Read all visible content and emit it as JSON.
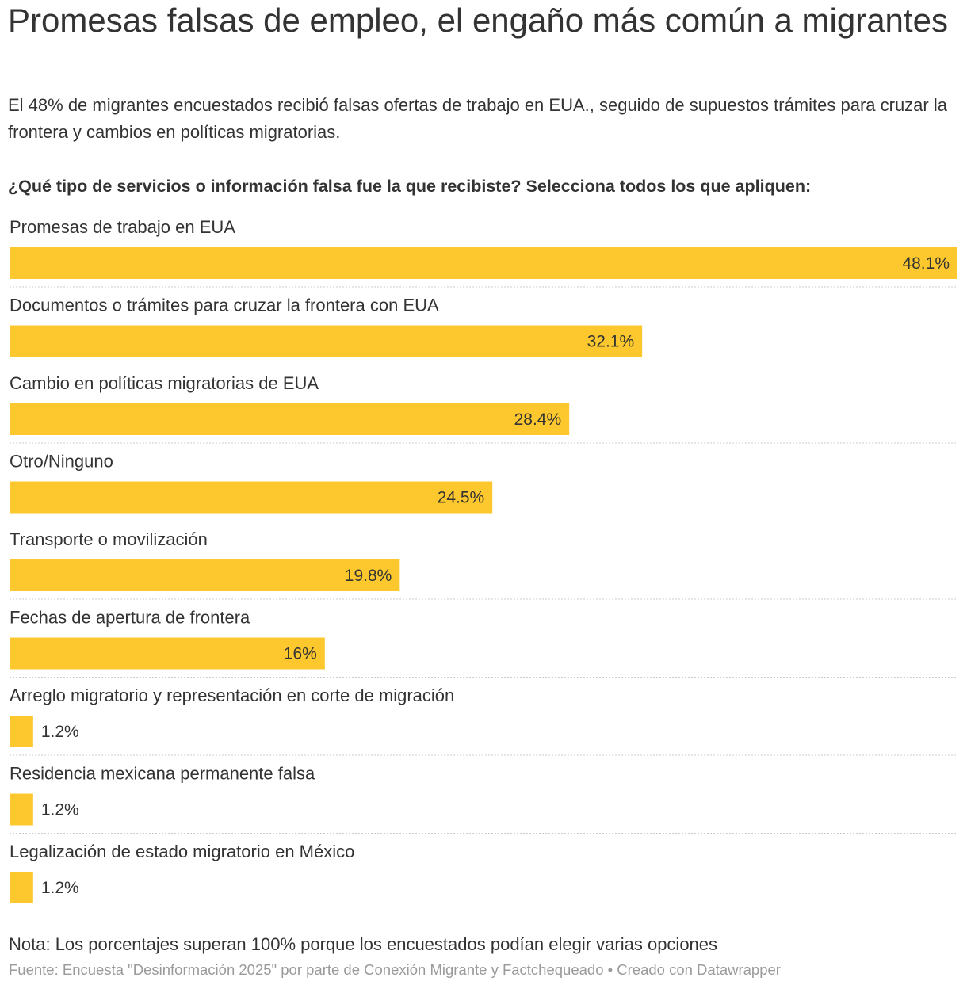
{
  "title": "Promesas falsas de empleo, el engaño más común a migrantes",
  "subtitle": "El 48% de migrantes encuestados recibió falsas ofertas de trabajo en EUA., seguido de supuestos trámites para cruzar la frontera y cambios en políticas migratorias.",
  "question": "¿Qué tipo de servicios o información falsa fue la que recibiste? Selecciona todos los que apliquen:",
  "chart_data": {
    "type": "bar",
    "orientation": "horizontal",
    "title": "¿Qué tipo de servicios o información falsa fue la que recibiste? Selecciona todos los que apliquen:",
    "categories": [
      "Promesas de trabajo en EUA",
      "Documentos o trámites para cruzar la frontera con EUA",
      "Cambio en políticas migratorias de EUA",
      "Otro/Ninguno",
      "Transporte o movilización",
      "Fechas de apertura de frontera",
      "Arreglo migratorio y representación en corte de migración",
      "Residencia mexicana permanente falsa",
      "Legalización de estado migratorio en México"
    ],
    "values": [
      48.1,
      32.1,
      28.4,
      24.5,
      19.8,
      16,
      1.2,
      1.2,
      1.2
    ],
    "value_labels": [
      "48.1%",
      "32.1%",
      "28.4%",
      "24.5%",
      "19.8%",
      "16%",
      "1.2%",
      "1.2%",
      "1.2%"
    ],
    "xlim": [
      0,
      48.1
    ],
    "unit": "%",
    "bar_color": "#fcc82e",
    "xlabel": "",
    "ylabel": ""
  },
  "note": "Nota: Los porcentajes superan 100% porque los encuestados podían elegir varias opciones",
  "source": "Fuente: Encuesta \"Desinformación 2025\" por parte de Conexión Migrante y Factchequeado • Creado con Datawrapper"
}
